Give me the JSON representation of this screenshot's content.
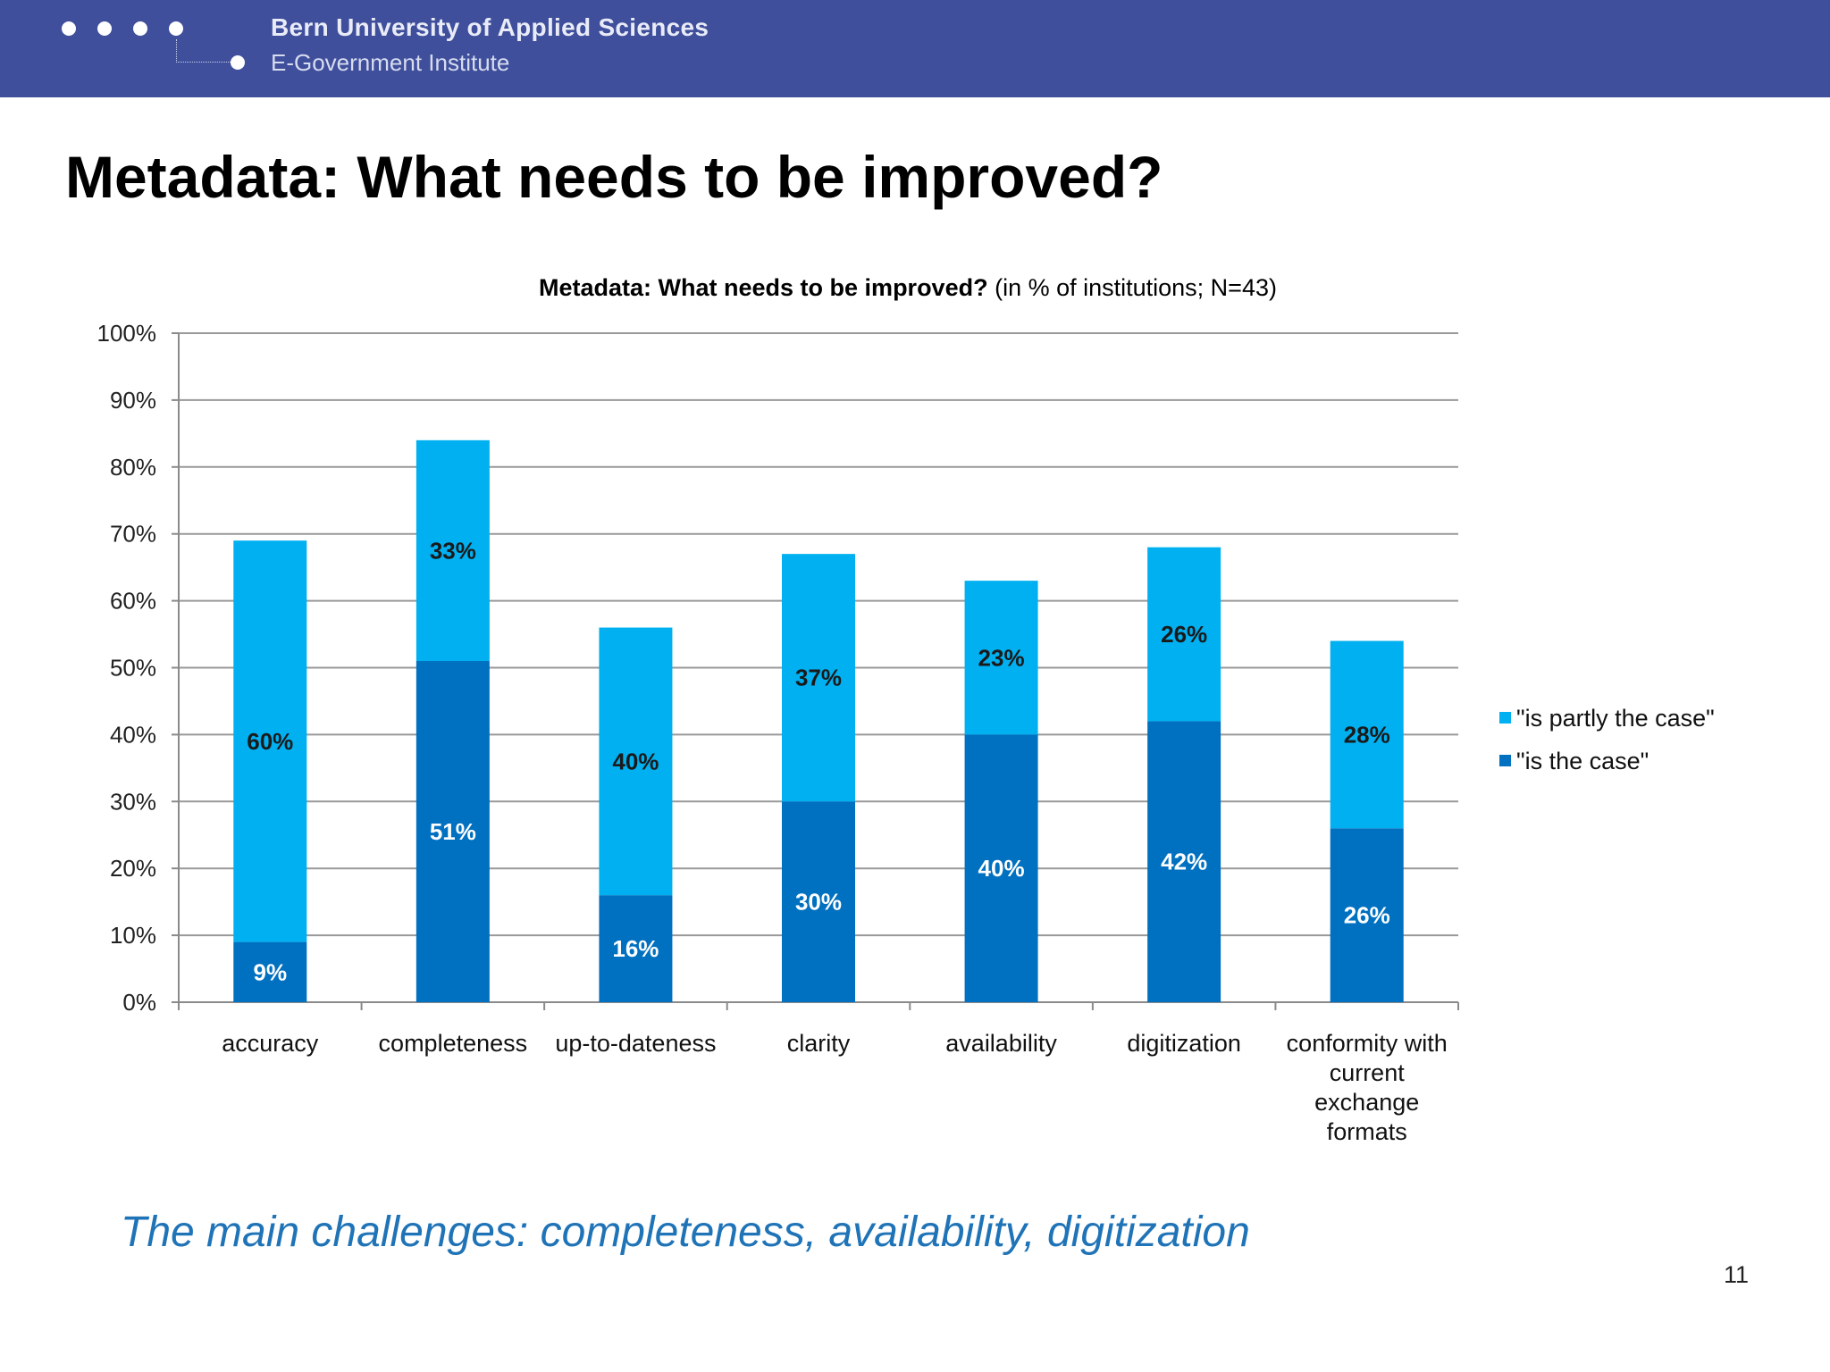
{
  "header": {
    "university": "Bern University of Applied Sciences",
    "institute": "E-Government Institute",
    "logo_icon": "dots-logo-icon"
  },
  "slide": {
    "title": "Metadata: What needs to be improved?",
    "takeaway": "The main challenges: completeness, availability, digitization",
    "page_number": "11"
  },
  "chart_data": {
    "type": "bar",
    "stacked": true,
    "title_bold": "Metadata: What needs to be improved?",
    "title_rest": " (in % of institutions; N=43)",
    "categories": [
      [
        "accuracy"
      ],
      [
        "completeness"
      ],
      [
        "up-to-dateness"
      ],
      [
        "clarity"
      ],
      [
        "availability"
      ],
      [
        "digitization"
      ],
      [
        "conformity with",
        "current",
        "exchange",
        "formats"
      ]
    ],
    "series": [
      {
        "name": "\"is the case\"",
        "color": "#0070c0",
        "label_color": "#ffffff",
        "values": [
          9,
          51,
          16,
          30,
          40,
          42,
          26
        ],
        "labels": [
          "9%",
          "51%",
          "16%",
          "30%",
          "40%",
          "42%",
          "26%"
        ]
      },
      {
        "name": "\"is partly the case\"",
        "color": "#00b0f0",
        "label_color": "#1a1a1a",
        "values": [
          60,
          33,
          40,
          37,
          23,
          26,
          28
        ],
        "labels": [
          "60%",
          "33%",
          "40%",
          "37%",
          "23%",
          "26%",
          "28%"
        ]
      }
    ],
    "y_ticks": [
      "0%",
      "10%",
      "20%",
      "30%",
      "40%",
      "50%",
      "60%",
      "70%",
      "80%",
      "90%",
      "100%"
    ],
    "ylim": [
      0,
      100
    ],
    "grid": true,
    "legend_position": "right"
  }
}
